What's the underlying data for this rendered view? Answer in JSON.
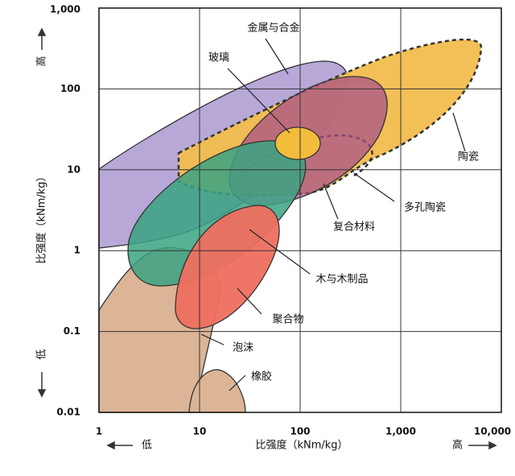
{
  "chart_data": {
    "type": "region",
    "x_label": "比强度（kNm/kg）",
    "y_label": "比强度（kNm/kg）",
    "x_low": "低",
    "x_high": "高",
    "y_low": "低",
    "y_high": "高",
    "log_x": true,
    "log_y": true,
    "grid": true,
    "xlim": [
      1,
      10000
    ],
    "xticks": [
      1,
      10,
      100,
      {
        "value": 1000,
        "label": "1,000"
      },
      {
        "value": 10000,
        "label": "10,000"
      }
    ],
    "ylim": [
      0.01,
      1000
    ],
    "yticks": [
      0.01,
      0.1,
      1,
      10,
      100,
      {
        "value": 1000,
        "label": "1,000"
      }
    ],
    "regions": [
      {
        "name": "金属与合金",
        "color": "#b3a3d6"
      },
      {
        "name": "玻璃",
        "color": "#f2bd3a"
      },
      {
        "name": "陶瓷",
        "color": "#f2bd4e"
      },
      {
        "name": "多孔陶瓷",
        "color": "#f2bd4e"
      },
      {
        "name": "复合材料",
        "color": "#a64d8a"
      },
      {
        "name": "木与木制品",
        "color": "#3aa383"
      },
      {
        "name": "聚合物",
        "color": "#ee6f5f"
      },
      {
        "name": "泡沫",
        "color": "#dcb596"
      },
      {
        "name": "橡胶",
        "color": "#dcb596"
      }
    ]
  }
}
